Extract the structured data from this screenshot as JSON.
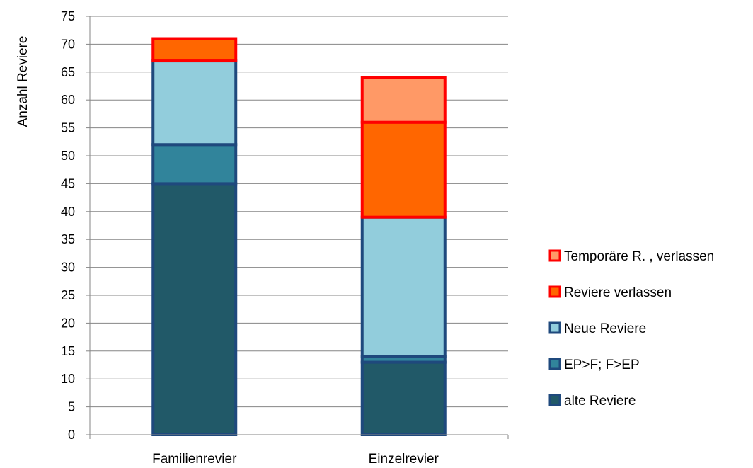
{
  "chart_data": {
    "type": "bar",
    "stacked": true,
    "title": "",
    "xlabel": "",
    "ylabel": "Anzahl Reviere",
    "ylim": [
      0,
      75
    ],
    "yticks": [
      0,
      5,
      10,
      15,
      20,
      25,
      30,
      35,
      40,
      45,
      50,
      55,
      60,
      65,
      70,
      75
    ],
    "grid": true,
    "legend_position": "right",
    "categories": [
      "Familienrevier",
      "Einzelrevier"
    ],
    "series": [
      {
        "name": "alte Reviere",
        "values": [
          45,
          13
        ],
        "fill": "#215968",
        "stroke": "#1F497D"
      },
      {
        "name": "EP>F; F>EP",
        "values": [
          7,
          1
        ],
        "fill": "#31849B",
        "stroke": "#1F497D"
      },
      {
        "name": "Neue Reviere",
        "values": [
          15,
          25
        ],
        "fill": "#92CDDC",
        "stroke": "#1F497D"
      },
      {
        "name": "Reviere verlassen",
        "values": [
          4,
          17
        ],
        "fill": "#FF6600",
        "stroke": "#FF0000"
      },
      {
        "name": "Temporäre R. , verlassen",
        "values": [
          0,
          8
        ],
        "fill": "#FF9966",
        "stroke": "#FF0000"
      }
    ]
  }
}
